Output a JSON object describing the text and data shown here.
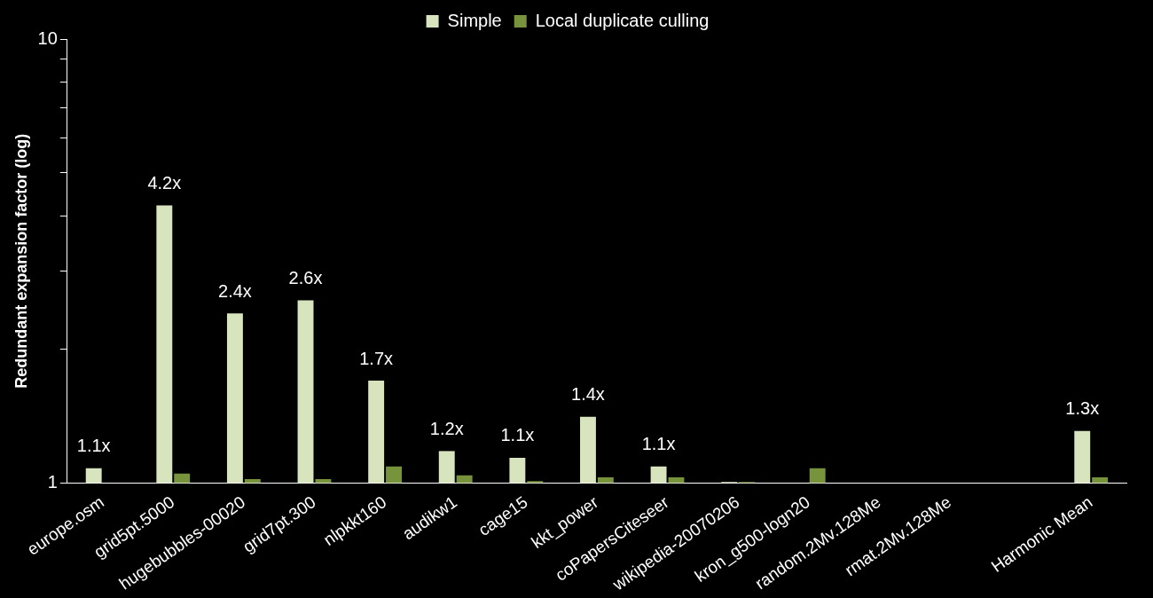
{
  "chart_data": {
    "type": "bar",
    "ylabel": "Redundant expansion factor (log)",
    "categories": [
      "europe.osm",
      "grid5pt.5000",
      "hugebubbles-00020",
      "grid7pt.300",
      "nlpkkt160",
      "audikw1",
      "cage15",
      "kkt_power",
      "coPapersCiteseer",
      "wikipedia-20070206",
      "kron_g500-logn20",
      "random.2Mv.128Me",
      "rmat.2Mv.128Me",
      null,
      "Harmonic Mean"
    ],
    "series": [
      {
        "name": "Simple",
        "color": "#d7e4bd",
        "values": [
          1.08,
          4.22,
          2.41,
          2.58,
          1.7,
          1.18,
          1.14,
          1.41,
          1.09,
          1.005,
          null,
          null,
          null,
          null,
          1.31
        ],
        "value_labels": [
          "1.1x",
          "4.2x",
          "2.4x",
          "2.6x",
          "1.7x",
          "1.2x",
          "1.1x",
          "1.4x",
          "1.1x",
          null,
          null,
          null,
          null,
          null,
          "1.3x"
        ]
      },
      {
        "name": "Local duplicate culling",
        "color": "#77933c",
        "values": [
          null,
          1.05,
          1.02,
          1.02,
          1.09,
          1.04,
          1.01,
          1.03,
          1.03,
          1.005,
          1.08,
          null,
          null,
          null,
          1.03
        ]
      }
    ],
    "log": true,
    "ylim": [
      1,
      10
    ],
    "yticks": [
      1,
      {
        "value": 2,
        "label": null
      },
      {
        "value": 3,
        "label": null
      },
      {
        "value": 4,
        "label": null
      },
      {
        "value": 5,
        "label": null
      },
      {
        "value": 6,
        "label": null
      },
      {
        "value": 7,
        "label": null
      },
      {
        "value": 8,
        "label": null
      },
      {
        "value": 9,
        "label": null
      },
      10
    ],
    "grid": false,
    "legend": "top"
  }
}
